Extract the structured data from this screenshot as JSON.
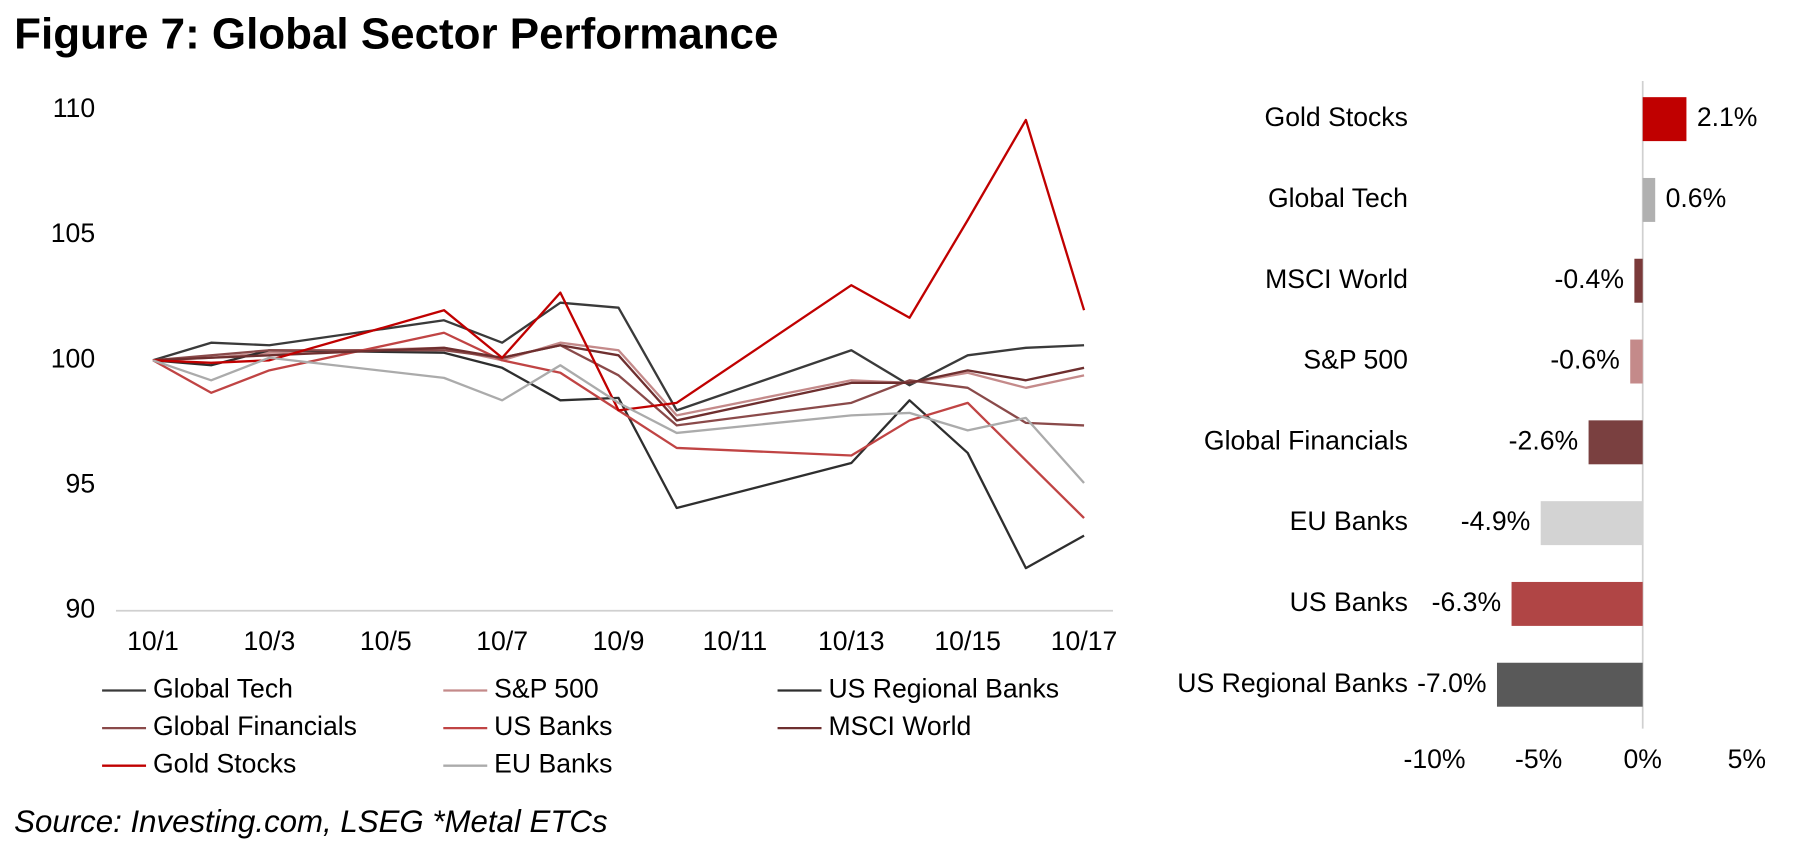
{
  "title": "Figure 7: Global Sector Performance",
  "source": "Source: Investing.com, LSEG *Metal ETCs",
  "chart_data": [
    {
      "type": "line",
      "x": [
        "10/1",
        "10/2",
        "10/3",
        "10/6",
        "10/7",
        "10/8",
        "10/9",
        "10/10",
        "10/13",
        "10/14",
        "10/15",
        "10/16",
        "10/17"
      ],
      "xticks": [
        "10/1",
        "10/3",
        "10/5",
        "10/7",
        "10/9",
        "10/11",
        "10/13",
        "10/15",
        "10/17"
      ],
      "ylim": [
        90,
        110
      ],
      "yticks": [
        90,
        95,
        100,
        105,
        110
      ],
      "series": [
        {
          "name": "Global Tech",
          "color": "#3a3a3a",
          "values": [
            100,
            100.7,
            100.6,
            101.6,
            100.7,
            102.3,
            102.1,
            98.0,
            100.4,
            99.0,
            100.2,
            100.5,
            100.6
          ]
        },
        {
          "name": "S&P 500",
          "color": "#c48a8a",
          "values": [
            100,
            100.1,
            100.3,
            100.5,
            100.0,
            100.7,
            100.4,
            97.8,
            99.2,
            99.1,
            99.5,
            98.9,
            99.4
          ]
        },
        {
          "name": "US Regional Banks",
          "color": "#2e2e2e",
          "values": [
            100,
            99.8,
            100.4,
            100.3,
            99.7,
            98.4,
            98.5,
            94.1,
            95.9,
            98.4,
            96.3,
            91.7,
            93.0
          ]
        },
        {
          "name": "Global Financials",
          "color": "#8a4a4a",
          "values": [
            100,
            100.2,
            100.4,
            100.4,
            100.1,
            100.6,
            99.4,
            97.4,
            98.3,
            99.2,
            98.9,
            97.5,
            97.4
          ]
        },
        {
          "name": "US Banks",
          "color": "#c04444",
          "values": [
            100,
            98.7,
            99.6,
            101.1,
            100.0,
            99.5,
            98.0,
            96.5,
            96.2,
            97.6,
            98.3,
            96.0,
            93.7
          ]
        },
        {
          "name": "MSCI World",
          "color": "#6e2f2f",
          "values": [
            100,
            100.1,
            100.2,
            100.5,
            100.1,
            100.6,
            100.2,
            97.6,
            99.1,
            99.1,
            99.6,
            99.2,
            99.7
          ]
        },
        {
          "name": "Gold Stocks",
          "color": "#c00000",
          "values": [
            100,
            99.9,
            100.0,
            102.0,
            100.1,
            102.7,
            98.0,
            98.3,
            103.0,
            101.7,
            105.6,
            109.6,
            102.0
          ]
        },
        {
          "name": "EU Banks",
          "color": "#ababab",
          "values": [
            100,
            99.2,
            100.1,
            99.3,
            98.4,
            99.8,
            98.3,
            97.1,
            97.8,
            97.9,
            97.2,
            97.7,
            95.1
          ]
        }
      ]
    },
    {
      "type": "hbar",
      "categories": [
        "Gold Stocks",
        "Global Tech",
        "MSCI World",
        "S&P 500",
        "Global Financials",
        "EU Banks",
        "US Banks",
        "US Regional Banks"
      ],
      "values": [
        2.1,
        0.6,
        -0.4,
        -0.6,
        -2.6,
        -4.9,
        -6.3,
        -7.0
      ],
      "value_labels": [
        "2.1%",
        "0.6%",
        "-0.4%",
        "-0.6%",
        "-2.6%",
        "-4.9%",
        "-6.3%",
        "-7.0%"
      ],
      "colors": [
        "#c00000",
        "#b0b0b0",
        "#7a3a3a",
        "#c48a8a",
        "#7a4040",
        "#d3d3d3",
        "#b04545",
        "#595959"
      ],
      "xlim": [
        -10,
        5
      ],
      "xticks": [
        {
          "value": -10,
          "label": "-10%"
        },
        {
          "value": -5,
          "label": "-5%"
        },
        {
          "value": 0,
          "label": "0%"
        },
        {
          "value": 5,
          "label": "5%"
        }
      ]
    }
  ]
}
